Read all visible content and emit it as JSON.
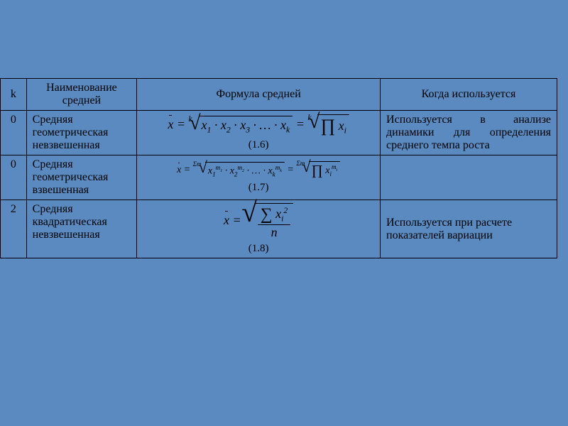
{
  "colors": {
    "background": "#5a8ac0",
    "border": "#000000",
    "text": "#000000"
  },
  "header": {
    "k": "k",
    "name": "Наименование средней",
    "formula": "Формула средней",
    "usage": "Когда используется"
  },
  "rows": [
    {
      "k": "0",
      "name": "Средняя геометрическая невзвешенная",
      "formula_num": "(1.6)",
      "formula": {
        "root_degree": "k",
        "body_left": "x₁ · x₂ · x₃ · … · x_k",
        "body_right": "∏ xᵢ"
      },
      "usage": "Используется в анализе динамики для определения среднего темпа роста"
    },
    {
      "k": "0",
      "name": "Средняя геометрическая взвешенная",
      "formula_num": "(1.7)",
      "formula": {
        "root_degree": "Σm",
        "body_left": "x₁^m₁ · x₂^m₂ · … · x_k^m_k",
        "body_right": "∏ xᵢ^mᵢ"
      },
      "usage": ""
    },
    {
      "k": "2",
      "name": "Средняя квадратическая невзвешенная",
      "formula_num": "(1.8)",
      "formula": {
        "numerator": "Σ xᵢ²",
        "denominator": "n"
      },
      "usage": "Используется при расчете показателей вариации"
    }
  ]
}
